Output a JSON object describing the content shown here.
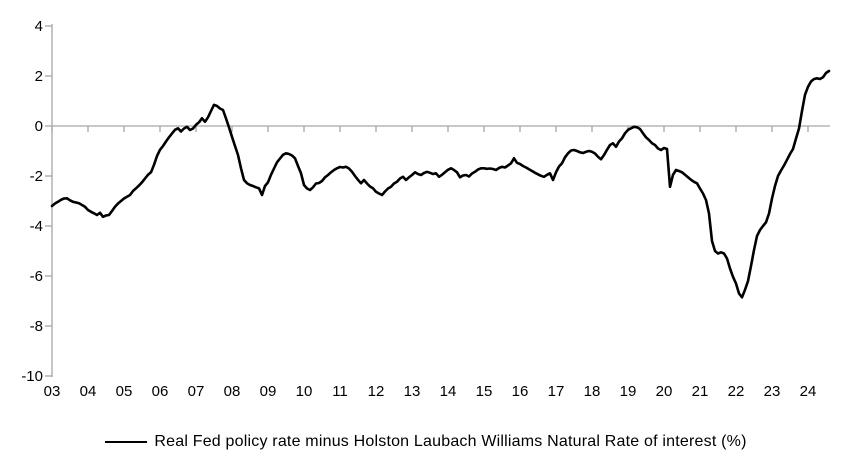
{
  "chart_data": {
    "type": "line",
    "title": "",
    "xlabel": "",
    "ylabel": "",
    "x_start": "2003-01",
    "x_end": "2024-08",
    "frequency": "monthly",
    "x_tick_labels": [
      "03",
      "04",
      "05",
      "06",
      "07",
      "08",
      "09",
      "10",
      "11",
      "12",
      "13",
      "14",
      "15",
      "16",
      "17",
      "18",
      "19",
      "20",
      "21",
      "22",
      "23",
      "24"
    ],
    "y_tick_labels": [
      "4",
      "2",
      "0",
      "-2",
      "-4",
      "-6",
      "-8",
      "-10"
    ],
    "y_ticks": [
      4,
      2,
      0,
      -2,
      -4,
      -6,
      -8,
      -10
    ],
    "ylim": [
      -10,
      4
    ],
    "grid": "none",
    "zero_axis_line": true,
    "legend_position": "bottom",
    "series": [
      {
        "name": "Real Fed policy rate minus Holston Laubach Williams Natural Rate of interest (%)",
        "color": "#000000",
        "values": [
          -3.2,
          -3.1,
          -3.03,
          -2.95,
          -2.9,
          -2.89,
          -2.97,
          -3.03,
          -3.06,
          -3.09,
          -3.16,
          -3.23,
          -3.36,
          -3.43,
          -3.49,
          -3.56,
          -3.47,
          -3.63,
          -3.58,
          -3.56,
          -3.4,
          -3.23,
          -3.1,
          -3.0,
          -2.9,
          -2.83,
          -2.76,
          -2.6,
          -2.49,
          -2.38,
          -2.25,
          -2.1,
          -1.95,
          -1.85,
          -1.55,
          -1.2,
          -0.95,
          -0.8,
          -0.62,
          -0.45,
          -0.3,
          -0.15,
          -0.09,
          -0.22,
          -0.1,
          -0.03,
          -0.16,
          -0.1,
          0.05,
          0.15,
          0.31,
          0.17,
          0.35,
          0.6,
          0.85,
          0.8,
          0.7,
          0.64,
          0.3,
          -0.05,
          -0.43,
          -0.8,
          -1.16,
          -1.69,
          -2.16,
          -2.29,
          -2.36,
          -2.4,
          -2.45,
          -2.49,
          -2.76,
          -2.4,
          -2.25,
          -1.95,
          -1.7,
          -1.45,
          -1.3,
          -1.15,
          -1.09,
          -1.12,
          -1.18,
          -1.29,
          -1.6,
          -1.89,
          -2.36,
          -2.5,
          -2.56,
          -2.45,
          -2.3,
          -2.28,
          -2.2,
          -2.05,
          -1.96,
          -1.85,
          -1.76,
          -1.69,
          -1.64,
          -1.66,
          -1.63,
          -1.7,
          -1.83,
          -2.0,
          -2.15,
          -2.29,
          -2.16,
          -2.3,
          -2.42,
          -2.49,
          -2.63,
          -2.7,
          -2.76,
          -2.62,
          -2.5,
          -2.43,
          -2.3,
          -2.23,
          -2.1,
          -2.03,
          -2.16,
          -2.05,
          -1.96,
          -1.85,
          -1.92,
          -1.96,
          -1.88,
          -1.83,
          -1.87,
          -1.92,
          -1.89,
          -2.03,
          -1.95,
          -1.85,
          -1.75,
          -1.69,
          -1.76,
          -1.85,
          -2.05,
          -1.98,
          -1.96,
          -2.02,
          -1.9,
          -1.83,
          -1.74,
          -1.69,
          -1.69,
          -1.71,
          -1.7,
          -1.72,
          -1.76,
          -1.68,
          -1.63,
          -1.66,
          -1.58,
          -1.49,
          -1.29,
          -1.47,
          -1.52,
          -1.6,
          -1.66,
          -1.73,
          -1.8,
          -1.87,
          -1.93,
          -1.99,
          -2.03,
          -1.95,
          -1.89,
          -2.16,
          -1.85,
          -1.62,
          -1.49,
          -1.25,
          -1.09,
          -0.98,
          -0.96,
          -1.0,
          -1.05,
          -1.08,
          -1.03,
          -1.0,
          -1.03,
          -1.1,
          -1.23,
          -1.33,
          -1.16,
          -0.95,
          -0.76,
          -0.69,
          -0.83,
          -0.62,
          -0.49,
          -0.29,
          -0.15,
          -0.09,
          -0.03,
          -0.05,
          -0.12,
          -0.29,
          -0.45,
          -0.56,
          -0.69,
          -0.76,
          -0.9,
          -0.96,
          -0.88,
          -0.92,
          -2.43,
          -1.95,
          -1.76,
          -1.8,
          -1.85,
          -1.95,
          -2.05,
          -2.15,
          -2.23,
          -2.29,
          -2.5,
          -2.7,
          -2.96,
          -3.5,
          -4.6,
          -5.0,
          -5.1,
          -5.05,
          -5.1,
          -5.3,
          -5.7,
          -6.03,
          -6.3,
          -6.7,
          -6.85,
          -6.55,
          -6.2,
          -5.6,
          -4.96,
          -4.4,
          -4.16,
          -4.0,
          -3.85,
          -3.5,
          -2.9,
          -2.4,
          -2.0,
          -1.78,
          -1.58,
          -1.35,
          -1.12,
          -0.92,
          -0.5,
          -0.1,
          0.6,
          1.25,
          1.57,
          1.78,
          1.88,
          1.91,
          1.88,
          1.95,
          2.12,
          2.2
        ]
      }
    ]
  },
  "colors": {
    "axis": "#a6a6a6",
    "text": "#000000",
    "series": "#000000",
    "background": "#ffffff"
  },
  "legend": {
    "label": "Real Fed policy rate minus Holston Laubach Williams Natural Rate of interest (%)"
  }
}
